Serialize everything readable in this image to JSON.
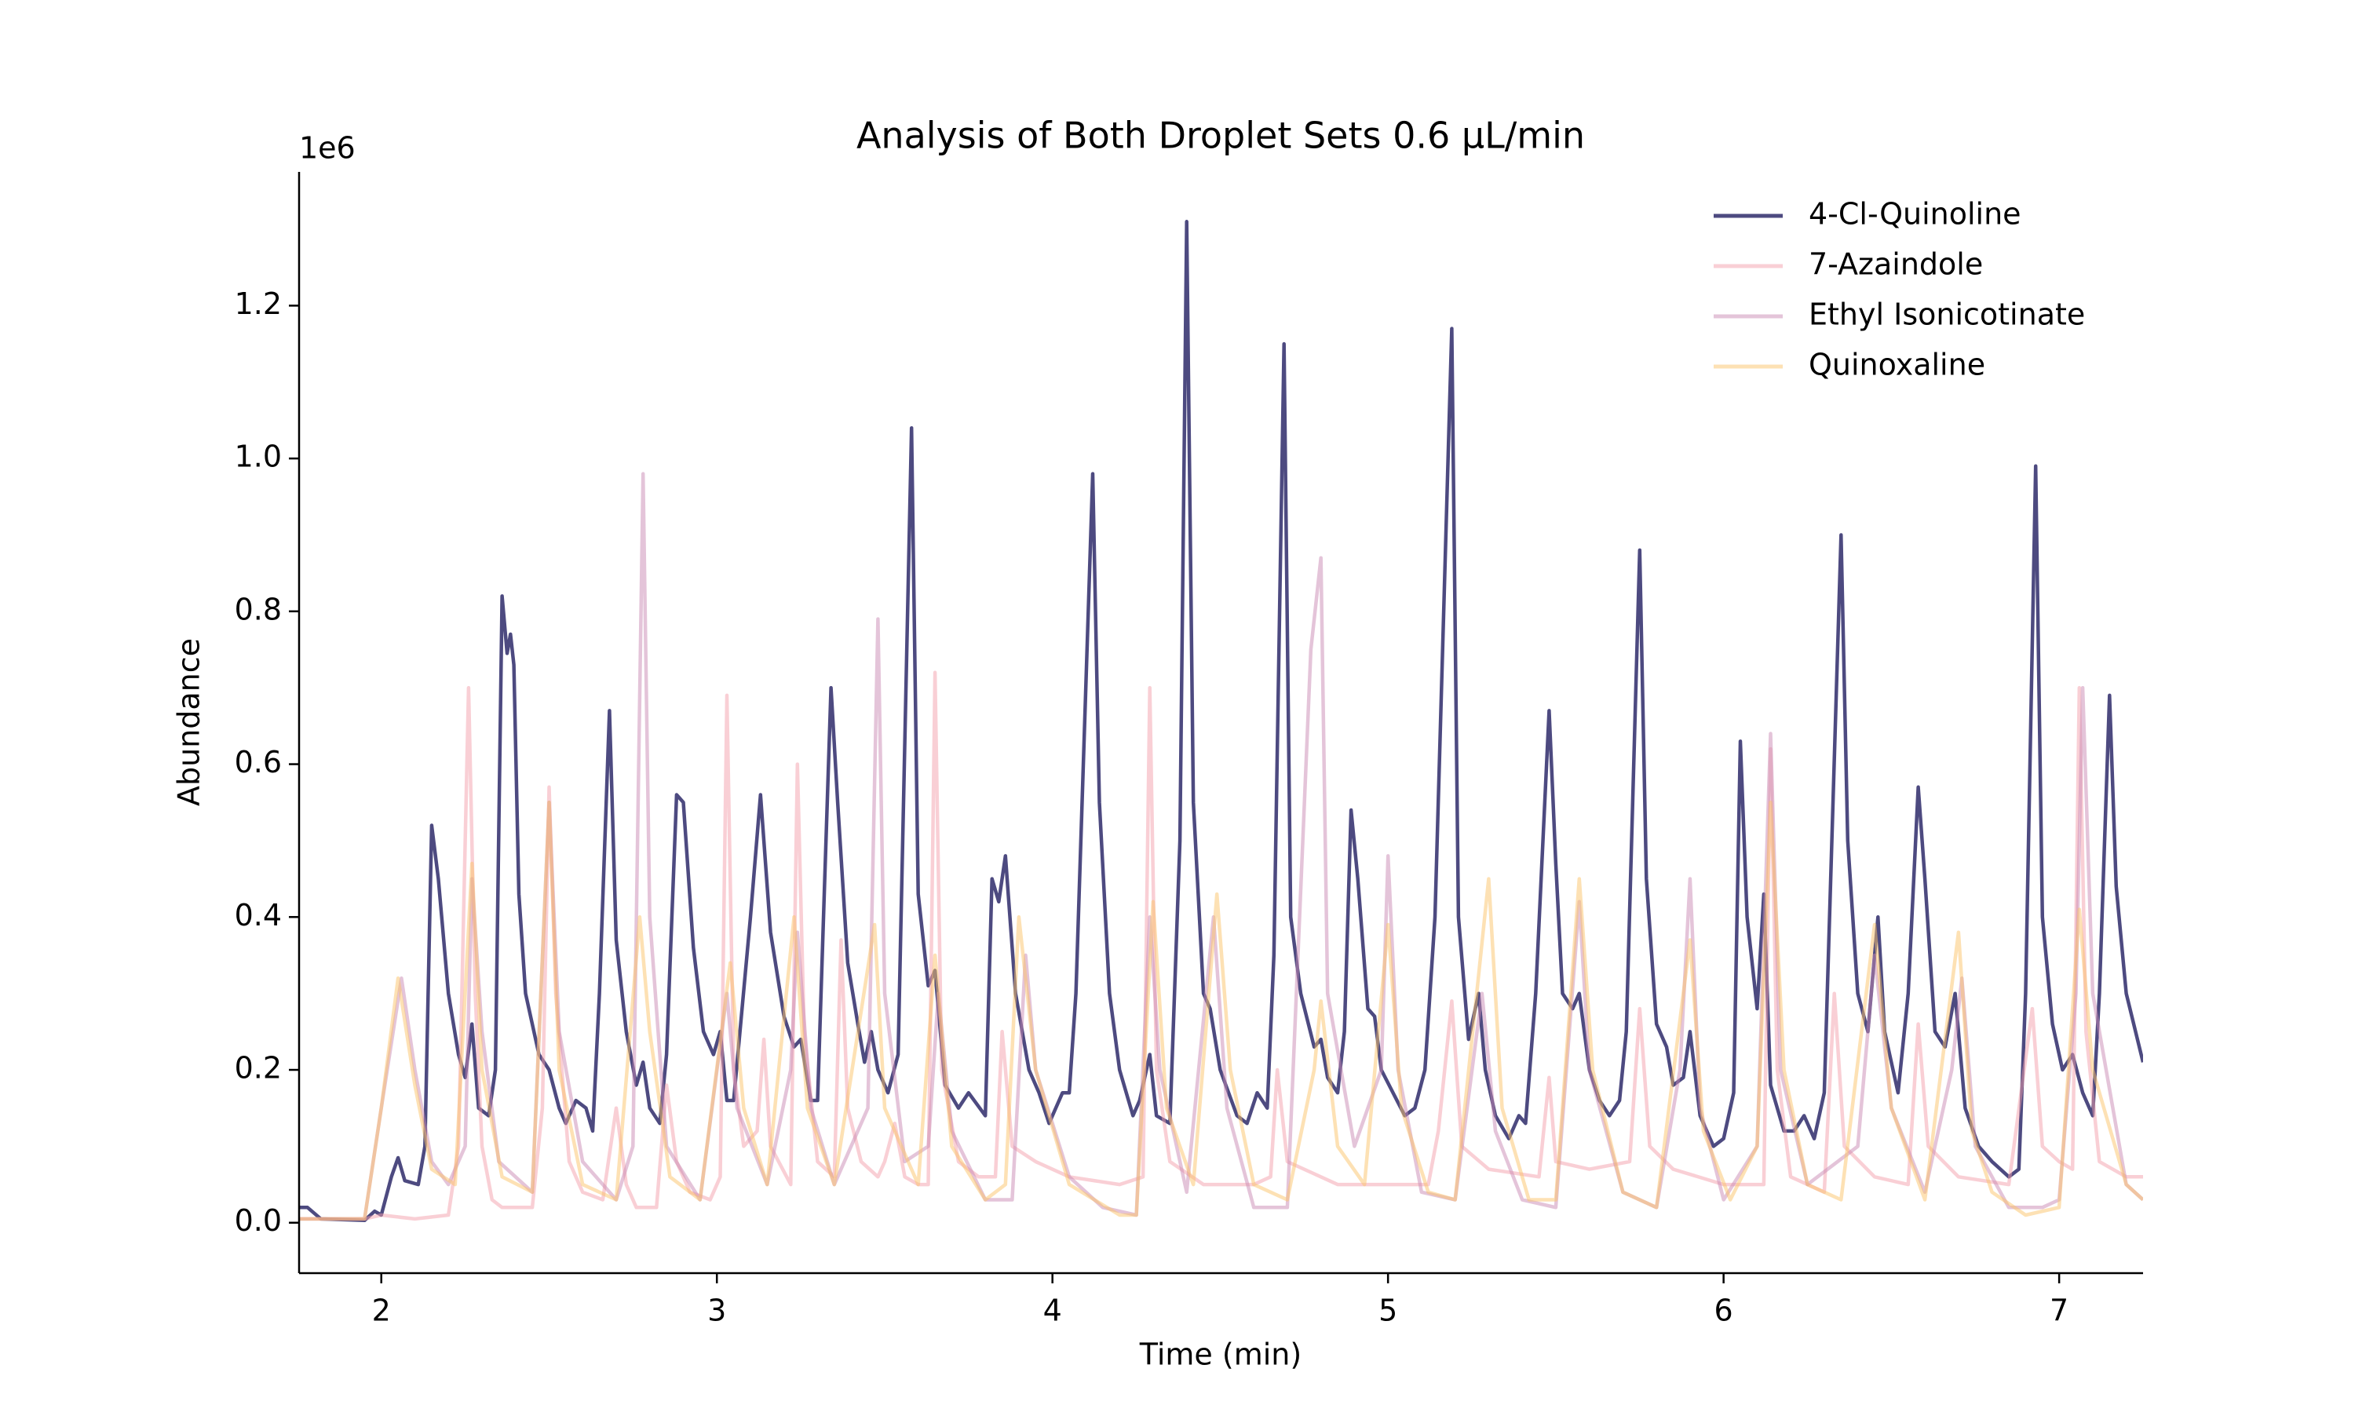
{
  "chart_data": {
    "type": "line",
    "title": "Analysis of Both Droplet Sets 0.6 µL/min",
    "xlabel": "Time (min)",
    "ylabel": "Abundance",
    "y_offset_label": "1e6",
    "xlim": [
      1.755,
      7.25
    ],
    "ylim": [
      -0.066,
      1.375
    ],
    "xticks": [
      2,
      3,
      4,
      5,
      6,
      7
    ],
    "yticks": [
      {
        "value": 0,
        "label": "0.0"
      },
      0.2,
      0.4,
      0.6,
      0.8,
      {
        "value": 1,
        "label": "1.0"
      },
      1.2
    ],
    "legend": "upper right",
    "series": [
      {
        "name": "4-Cl-Quinoline",
        "color": "#2e2a6ad9",
        "x": [
          1.75,
          1.78,
          1.82,
          1.95,
          1.98,
          2.0,
          2.03,
          2.05,
          2.07,
          2.11,
          2.13,
          2.15,
          2.17,
          2.2,
          2.23,
          2.25,
          2.27,
          2.29,
          2.32,
          2.34,
          2.36,
          2.375,
          2.385,
          2.395,
          2.41,
          2.43,
          2.47,
          2.5,
          2.53,
          2.55,
          2.58,
          2.61,
          2.63,
          2.65,
          2.68,
          2.7,
          2.73,
          2.76,
          2.78,
          2.8,
          2.83,
          2.85,
          2.88,
          2.9,
          2.93,
          2.96,
          2.99,
          3.01,
          3.03,
          3.05,
          3.1,
          3.13,
          3.16,
          3.2,
          3.23,
          3.25,
          3.28,
          3.3,
          3.32,
          3.34,
          3.36,
          3.39,
          3.42,
          3.44,
          3.46,
          3.48,
          3.51,
          3.54,
          3.58,
          3.6,
          3.63,
          3.65,
          3.68,
          3.72,
          3.75,
          3.8,
          3.82,
          3.84,
          3.86,
          3.89,
          3.93,
          3.96,
          3.99,
          4.03,
          4.05,
          4.07,
          4.12,
          4.14,
          4.17,
          4.2,
          4.24,
          4.26,
          4.29,
          4.31,
          4.35,
          4.38,
          4.4,
          4.42,
          4.45,
          4.47,
          4.5,
          4.55,
          4.58,
          4.61,
          4.64,
          4.66,
          4.69,
          4.71,
          4.74,
          4.78,
          4.8,
          4.82,
          4.85,
          4.87,
          4.89,
          4.91,
          4.94,
          4.96,
          4.98,
          5.05,
          5.08,
          5.11,
          5.14,
          5.19,
          5.21,
          5.24,
          5.27,
          5.29,
          5.32,
          5.36,
          5.39,
          5.41,
          5.44,
          5.48,
          5.5,
          5.52,
          5.55,
          5.57,
          5.6,
          5.63,
          5.66,
          5.69,
          5.71,
          5.75,
          5.77,
          5.8,
          5.83,
          5.85,
          5.88,
          5.9,
          5.93,
          5.97,
          6.0,
          6.03,
          6.05,
          6.07,
          6.1,
          6.12,
          6.14,
          6.18,
          6.21,
          6.24,
          6.27,
          6.3,
          6.35,
          6.37,
          6.4,
          6.43,
          6.46,
          6.48,
          6.52,
          6.55,
          6.58,
          6.6,
          6.63,
          6.66,
          6.69,
          6.72,
          6.76,
          6.8,
          6.85,
          6.88,
          6.9,
          6.93,
          6.95,
          6.98,
          7.01,
          7.04,
          7.07,
          7.1,
          7.12,
          7.15,
          7.17,
          7.2,
          7.25
        ],
        "values": [
          0.02,
          0.02,
          0.005,
          0.003,
          0.015,
          0.01,
          0.06,
          0.085,
          0.055,
          0.05,
          0.1,
          0.52,
          0.45,
          0.3,
          0.22,
          0.19,
          0.26,
          0.15,
          0.14,
          0.2,
          0.82,
          0.745,
          0.77,
          0.73,
          0.43,
          0.3,
          0.22,
          0.2,
          0.15,
          0.13,
          0.16,
          0.15,
          0.12,
          0.3,
          0.67,
          0.37,
          0.25,
          0.18,
          0.21,
          0.15,
          0.13,
          0.22,
          0.56,
          0.55,
          0.36,
          0.25,
          0.22,
          0.25,
          0.16,
          0.16,
          0.4,
          0.56,
          0.38,
          0.27,
          0.23,
          0.24,
          0.16,
          0.16,
          0.43,
          0.7,
          0.55,
          0.34,
          0.26,
          0.21,
          0.25,
          0.2,
          0.17,
          0.22,
          1.04,
          0.43,
          0.31,
          0.33,
          0.18,
          0.15,
          0.17,
          0.14,
          0.45,
          0.42,
          0.48,
          0.3,
          0.2,
          0.17,
          0.13,
          0.17,
          0.17,
          0.3,
          0.98,
          0.55,
          0.3,
          0.2,
          0.14,
          0.16,
          0.22,
          0.14,
          0.13,
          0.5,
          1.31,
          0.55,
          0.3,
          0.28,
          0.2,
          0.14,
          0.13,
          0.17,
          0.15,
          0.35,
          1.15,
          0.4,
          0.3,
          0.23,
          0.24,
          0.19,
          0.17,
          0.25,
          0.54,
          0.45,
          0.28,
          0.27,
          0.2,
          0.14,
          0.15,
          0.2,
          0.4,
          1.17,
          0.4,
          0.24,
          0.3,
          0.2,
          0.14,
          0.11,
          0.14,
          0.13,
          0.3,
          0.67,
          0.47,
          0.3,
          0.28,
          0.3,
          0.2,
          0.16,
          0.14,
          0.16,
          0.25,
          0.88,
          0.45,
          0.26,
          0.23,
          0.18,
          0.19,
          0.25,
          0.14,
          0.1,
          0.11,
          0.17,
          0.63,
          0.4,
          0.28,
          0.43,
          0.18,
          0.12,
          0.12,
          0.14,
          0.11,
          0.17,
          0.9,
          0.5,
          0.3,
          0.25,
          0.4,
          0.25,
          0.17,
          0.3,
          0.57,
          0.45,
          0.25,
          0.23,
          0.3,
          0.15,
          0.1,
          0.08,
          0.06,
          0.07,
          0.3,
          0.99,
          0.4,
          0.26,
          0.2,
          0.22,
          0.17,
          0.14,
          0.3,
          0.69,
          0.44,
          0.3,
          0.21
        ]
      },
      {
        "name": "7-Azaindole",
        "color": "#f4a0ac80",
        "x": [
          1.75,
          1.95,
          2.0,
          2.1,
          2.2,
          2.23,
          2.26,
          2.28,
          2.3,
          2.33,
          2.36,
          2.45,
          2.48,
          2.5,
          2.52,
          2.56,
          2.6,
          2.66,
          2.7,
          2.73,
          2.76,
          2.82,
          2.85,
          2.88,
          2.92,
          2.98,
          3.01,
          3.03,
          3.05,
          3.08,
          3.12,
          3.14,
          3.16,
          3.22,
          3.24,
          3.26,
          3.3,
          3.35,
          3.37,
          3.39,
          3.43,
          3.48,
          3.5,
          3.53,
          3.56,
          3.6,
          3.63,
          3.65,
          3.67,
          3.72,
          3.78,
          3.83,
          3.85,
          3.88,
          3.95,
          4.05,
          4.2,
          4.27,
          4.29,
          4.31,
          4.35,
          4.45,
          4.6,
          4.65,
          4.67,
          4.7,
          4.85,
          5.0,
          5.12,
          5.15,
          5.19,
          5.22,
          5.3,
          5.45,
          5.48,
          5.5,
          5.6,
          5.72,
          5.75,
          5.78,
          5.85,
          6.0,
          6.12,
          6.14,
          6.16,
          6.2,
          6.3,
          6.33,
          6.36,
          6.45,
          6.55,
          6.58,
          6.61,
          6.7,
          6.85,
          6.92,
          6.95,
          7.0,
          7.04,
          7.06,
          7.08,
          7.12,
          7.2,
          7.25
        ],
        "values": [
          0.005,
          0.005,
          0.01,
          0.005,
          0.01,
          0.1,
          0.7,
          0.3,
          0.1,
          0.03,
          0.02,
          0.02,
          0.15,
          0.57,
          0.3,
          0.08,
          0.04,
          0.03,
          0.15,
          0.05,
          0.02,
          0.02,
          0.18,
          0.08,
          0.04,
          0.03,
          0.06,
          0.69,
          0.2,
          0.1,
          0.12,
          0.24,
          0.1,
          0.05,
          0.6,
          0.25,
          0.08,
          0.06,
          0.37,
          0.15,
          0.08,
          0.06,
          0.08,
          0.13,
          0.06,
          0.05,
          0.05,
          0.72,
          0.2,
          0.08,
          0.06,
          0.06,
          0.25,
          0.1,
          0.08,
          0.06,
          0.05,
          0.06,
          0.7,
          0.2,
          0.08,
          0.05,
          0.05,
          0.06,
          0.2,
          0.08,
          0.05,
          0.05,
          0.05,
          0.12,
          0.29,
          0.1,
          0.07,
          0.06,
          0.19,
          0.08,
          0.07,
          0.08,
          0.28,
          0.1,
          0.07,
          0.05,
          0.05,
          0.62,
          0.2,
          0.06,
          0.04,
          0.3,
          0.1,
          0.06,
          0.05,
          0.26,
          0.1,
          0.06,
          0.05,
          0.28,
          0.1,
          0.08,
          0.07,
          0.7,
          0.25,
          0.08,
          0.06,
          0.06
        ]
      },
      {
        "name": "Ethyl Isonicotinate",
        "color": "#c98ab480",
        "x": [
          1.75,
          1.95,
          2.0,
          2.06,
          2.1,
          2.15,
          2.2,
          2.25,
          2.27,
          2.3,
          2.35,
          2.45,
          2.5,
          2.53,
          2.6,
          2.7,
          2.75,
          2.78,
          2.8,
          2.85,
          2.95,
          3.03,
          3.06,
          3.15,
          3.22,
          3.24,
          3.28,
          3.35,
          3.45,
          3.48,
          3.5,
          3.56,
          3.63,
          3.66,
          3.7,
          3.8,
          3.88,
          3.92,
          3.95,
          4.05,
          4.15,
          4.25,
          4.29,
          4.32,
          4.4,
          4.48,
          4.52,
          4.6,
          4.7,
          4.77,
          4.8,
          4.82,
          4.9,
          4.98,
          5.0,
          5.03,
          5.1,
          5.2,
          5.28,
          5.32,
          5.4,
          5.5,
          5.57,
          5.6,
          5.7,
          5.8,
          5.87,
          5.9,
          5.93,
          6.0,
          6.1,
          6.14,
          6.17,
          6.25,
          6.4,
          6.45,
          6.5,
          6.6,
          6.68,
          6.71,
          6.75,
          6.85,
          6.95,
          7.0,
          7.05,
          7.07,
          7.1,
          7.2,
          7.25
        ],
        "values": [
          0.005,
          0.005,
          0.15,
          0.32,
          0.2,
          0.08,
          0.05,
          0.1,
          0.45,
          0.25,
          0.08,
          0.04,
          0.55,
          0.25,
          0.08,
          0.03,
          0.1,
          0.98,
          0.4,
          0.1,
          0.03,
          0.3,
          0.15,
          0.05,
          0.2,
          0.38,
          0.15,
          0.05,
          0.15,
          0.79,
          0.3,
          0.08,
          0.1,
          0.3,
          0.12,
          0.03,
          0.03,
          0.35,
          0.2,
          0.06,
          0.02,
          0.01,
          0.4,
          0.2,
          0.04,
          0.4,
          0.15,
          0.02,
          0.02,
          0.75,
          0.87,
          0.3,
          0.1,
          0.2,
          0.48,
          0.2,
          0.04,
          0.03,
          0.3,
          0.12,
          0.03,
          0.02,
          0.42,
          0.2,
          0.04,
          0.02,
          0.2,
          0.45,
          0.15,
          0.03,
          0.1,
          0.64,
          0.2,
          0.05,
          0.1,
          0.35,
          0.15,
          0.04,
          0.2,
          0.32,
          0.1,
          0.02,
          0.02,
          0.03,
          0.3,
          0.7,
          0.3,
          0.05,
          0.03
        ]
      },
      {
        "name": "Quinoxaline",
        "color": "#fcc46a80",
        "x": [
          1.75,
          1.95,
          2.0,
          2.05,
          2.1,
          2.15,
          2.22,
          2.27,
          2.3,
          2.36,
          2.45,
          2.5,
          2.53,
          2.6,
          2.7,
          2.77,
          2.8,
          2.86,
          2.95,
          3.04,
          3.08,
          3.15,
          3.23,
          3.27,
          3.35,
          3.47,
          3.5,
          3.6,
          3.65,
          3.7,
          3.8,
          3.86,
          3.9,
          3.95,
          4.05,
          4.2,
          4.25,
          4.3,
          4.34,
          4.42,
          4.49,
          4.53,
          4.6,
          4.7,
          4.78,
          4.8,
          4.85,
          4.93,
          5.0,
          5.04,
          5.12,
          5.2,
          5.3,
          5.34,
          5.42,
          5.5,
          5.57,
          5.61,
          5.7,
          5.8,
          5.9,
          5.94,
          6.02,
          6.1,
          6.14,
          6.18,
          6.25,
          6.35,
          6.45,
          6.5,
          6.6,
          6.7,
          6.74,
          6.8,
          6.9,
          7.0,
          7.06,
          7.1,
          7.2,
          7.25
        ],
        "values": [
          0.005,
          0.005,
          0.15,
          0.32,
          0.18,
          0.07,
          0.05,
          0.47,
          0.2,
          0.06,
          0.04,
          0.55,
          0.2,
          0.05,
          0.03,
          0.4,
          0.25,
          0.06,
          0.03,
          0.34,
          0.15,
          0.05,
          0.4,
          0.15,
          0.05,
          0.39,
          0.15,
          0.05,
          0.35,
          0.1,
          0.03,
          0.05,
          0.4,
          0.2,
          0.05,
          0.01,
          0.01,
          0.42,
          0.15,
          0.05,
          0.43,
          0.2,
          0.05,
          0.03,
          0.2,
          0.29,
          0.1,
          0.05,
          0.39,
          0.15,
          0.04,
          0.03,
          0.45,
          0.15,
          0.03,
          0.03,
          0.45,
          0.2,
          0.04,
          0.02,
          0.37,
          0.12,
          0.03,
          0.1,
          0.55,
          0.2,
          0.05,
          0.03,
          0.39,
          0.15,
          0.03,
          0.38,
          0.12,
          0.04,
          0.01,
          0.02,
          0.41,
          0.2,
          0.05,
          0.03
        ]
      }
    ]
  }
}
